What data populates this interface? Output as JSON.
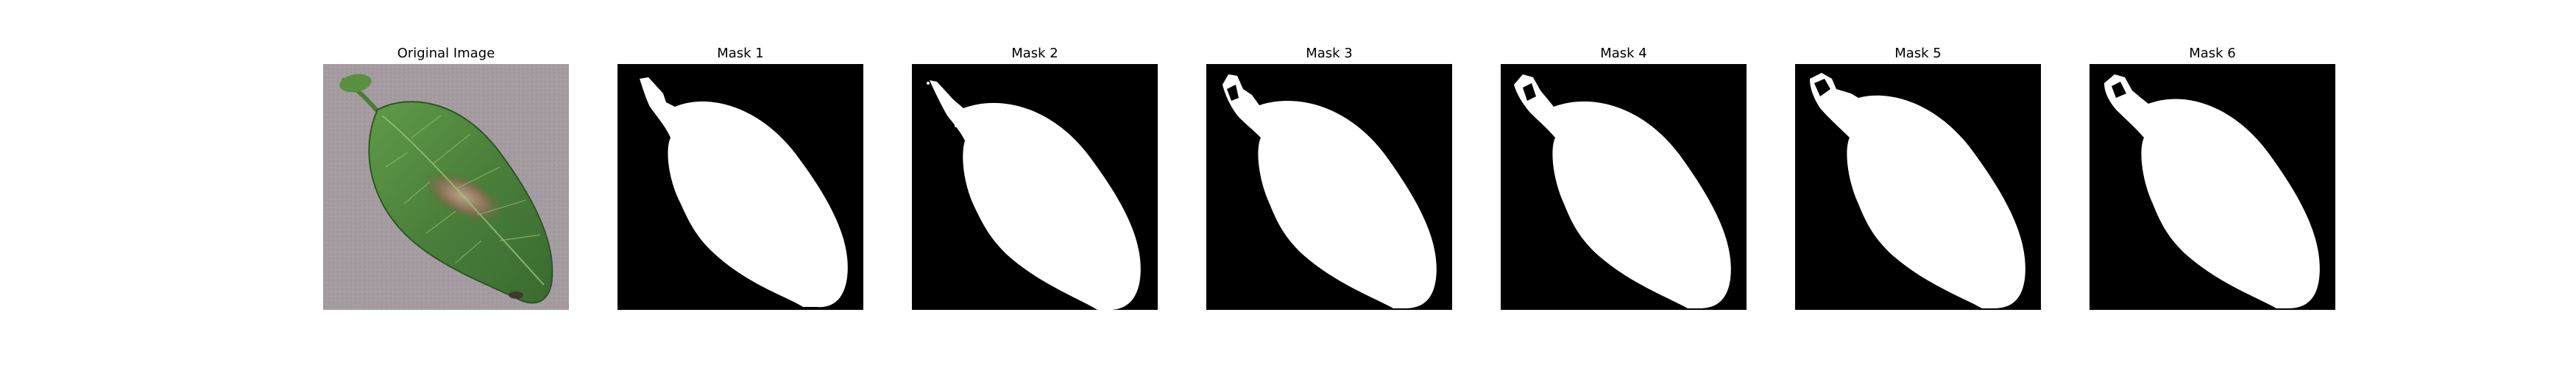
{
  "figure": {
    "panels": [
      {
        "id": "original",
        "title": "Original Image",
        "kind": "photo"
      },
      {
        "id": "mask-1",
        "title": "Mask 1",
        "kind": "mask"
      },
      {
        "id": "mask-2",
        "title": "Mask 2",
        "kind": "mask"
      },
      {
        "id": "mask-3",
        "title": "Mask 3",
        "kind": "mask"
      },
      {
        "id": "mask-4",
        "title": "Mask 4",
        "kind": "mask"
      },
      {
        "id": "mask-5",
        "title": "Mask 5",
        "kind": "mask"
      },
      {
        "id": "mask-6",
        "title": "Mask 6",
        "kind": "mask"
      }
    ]
  },
  "colors": {
    "background": "#ffffff",
    "mask_background": "#000000",
    "mask_foreground": "#ffffff",
    "photo_surface": "#a59ca1",
    "leaf_dark": "#2f5a2a",
    "leaf_mid": "#4f8a3c",
    "lesion": "#8a7a5c"
  }
}
